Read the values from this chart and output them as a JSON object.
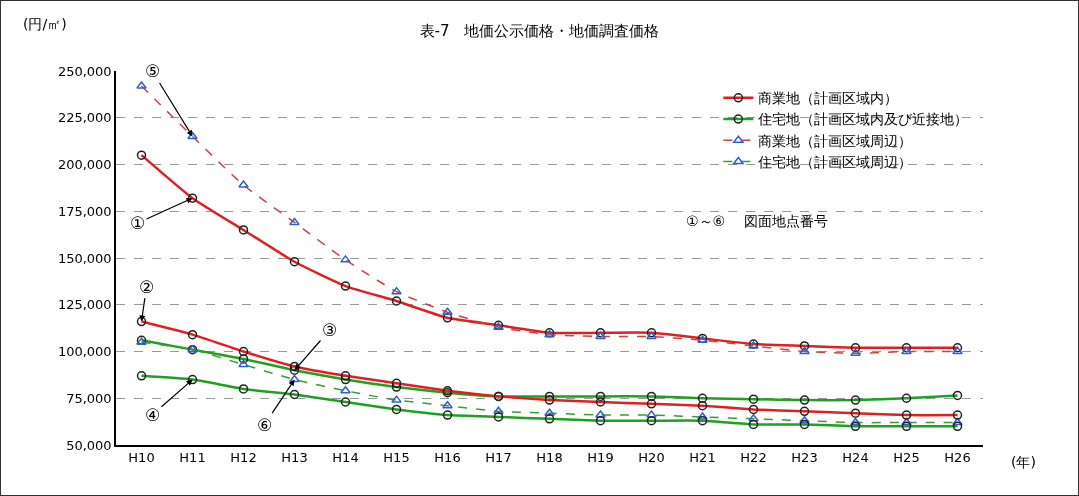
{
  "chart_data": {
    "type": "line",
    "title": "表-7　地価公示価格・地価調査価格",
    "ylabel": "(円/㎡)",
    "xlabel": "(年)",
    "categories": [
      "H10",
      "H11",
      "H12",
      "H13",
      "H14",
      "H15",
      "H16",
      "H17",
      "H18",
      "H19",
      "H20",
      "H21",
      "H22",
      "H23",
      "H24",
      "H25",
      "H26"
    ],
    "series": [
      {
        "name": "商業地（計画区域内）",
        "color": "#e02020",
        "marker": "circle",
        "line_style": "solid",
        "values": [
          205000,
          182000,
          165000,
          148000,
          135000,
          127000,
          118000,
          114000,
          110000,
          110000,
          110000,
          107000,
          104000,
          103000,
          102000,
          102000,
          102000
        ]
      },
      {
        "name": "住宅地（計画区域内及び近接地）",
        "color": "#20a020",
        "marker": "circle",
        "line_style": "solid",
        "values": [
          106000,
          101000,
          96000,
          90000,
          85000,
          81000,
          78000,
          76000,
          76000,
          76000,
          76000,
          75000,
          74500,
          74000,
          74000,
          75000,
          76500
        ]
      },
      {
        "name": "商業地（計画区域周辺）",
        "color": "#d04040",
        "marker": "triangle",
        "line_style": "dashed",
        "values": [
          242000,
          215000,
          189000,
          169000,
          149000,
          132000,
          121000,
          113000,
          109000,
          108000,
          108000,
          106000,
          103000,
          100000,
          99000,
          100000,
          100000
        ]
      },
      {
        "name": "住宅地（計画区域周辺）",
        "color": "#30a030",
        "marker": "triangle",
        "line_style": "dashed",
        "values": [
          105000,
          101000,
          93000,
          85000,
          79000,
          74000,
          71000,
          68000,
          67000,
          66000,
          66000,
          65000,
          64000,
          63000,
          62000,
          62000,
          62000
        ]
      },
      {
        "color": "#e02020",
        "marker": "circle",
        "line_style": "solid",
        "values": [
          116000,
          109000,
          100000,
          92000,
          87000,
          83000,
          79000,
          76000,
          74000,
          73000,
          72000,
          71000,
          69000,
          68000,
          67000,
          66000,
          66000
        ]
      },
      {
        "color": "#20a020",
        "marker": "circle",
        "line_style": "solid",
        "values": [
          87000,
          85000,
          80000,
          77000,
          73000,
          69000,
          66000,
          65000,
          64000,
          63000,
          63000,
          63000,
          61000,
          61000,
          60000,
          60000,
          60000
        ]
      }
    ],
    "ylim": [
      50000,
      250000
    ],
    "yticks": [
      {
        "value": 50000,
        "label": "50,000"
      },
      {
        "value": 75000,
        "label": "75,000"
      },
      {
        "value": 100000,
        "label": "100,000"
      },
      {
        "value": 125000,
        "label": "125,000"
      },
      {
        "value": 150000,
        "label": "150,000"
      },
      {
        "value": 175000,
        "label": "175,000"
      },
      {
        "value": 200000,
        "label": "200,000"
      },
      {
        "value": 225000,
        "label": "225,000"
      },
      {
        "value": 250000,
        "label": "250,000"
      }
    ],
    "grid": "y",
    "legend": "top right",
    "annotations": [
      {
        "text": "①",
        "x": "H11",
        "y": 182000
      },
      {
        "text": "②",
        "x": "H10",
        "y": 116000
      },
      {
        "text": "③",
        "x": "H13",
        "y": 90000
      },
      {
        "text": "④",
        "x": "H11",
        "y": 85000
      },
      {
        "text": "⑤",
        "x": "H11",
        "y": 215000
      },
      {
        "text": "⑥",
        "x": "H13",
        "y": 85000
      },
      "①～⑥　 図面地点番号"
    ]
  }
}
